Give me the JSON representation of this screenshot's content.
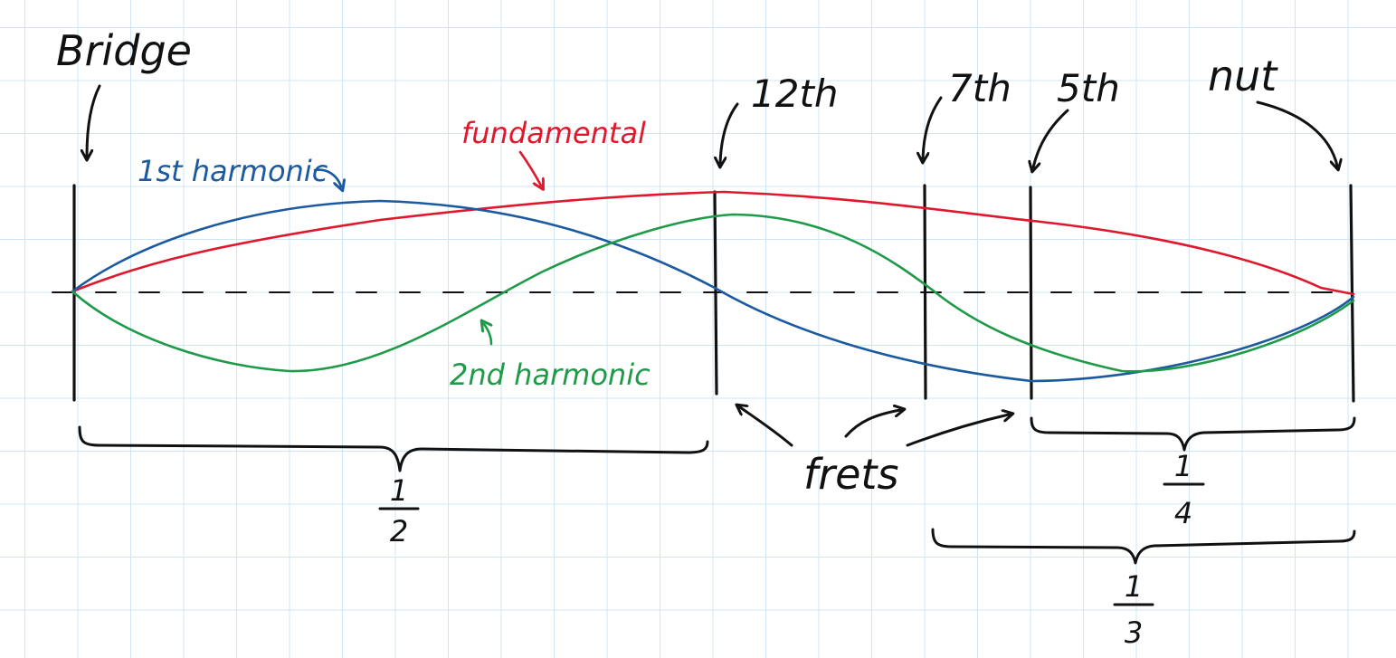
{
  "labels": {
    "bridge": "Bridge",
    "nut": "nut",
    "fret_12": "12th",
    "fret_7": "7th",
    "fret_5": "5th",
    "frets": "frets",
    "fundamental": "fundamental",
    "first_harmonic": "1st harmonic",
    "second_harmonic": "2nd harmonic"
  },
  "fractions": [
    {
      "numerator": "1",
      "denominator": "2"
    },
    {
      "numerator": "1",
      "denominator": "4"
    },
    {
      "numerator": "1",
      "denominator": "3"
    }
  ],
  "colors": {
    "fundamental": "#e0182d",
    "first_harmonic": "#1c5aa0",
    "second_harmonic": "#1f9a49",
    "ink": "#111111",
    "grid": "#cfe5f3"
  }
}
